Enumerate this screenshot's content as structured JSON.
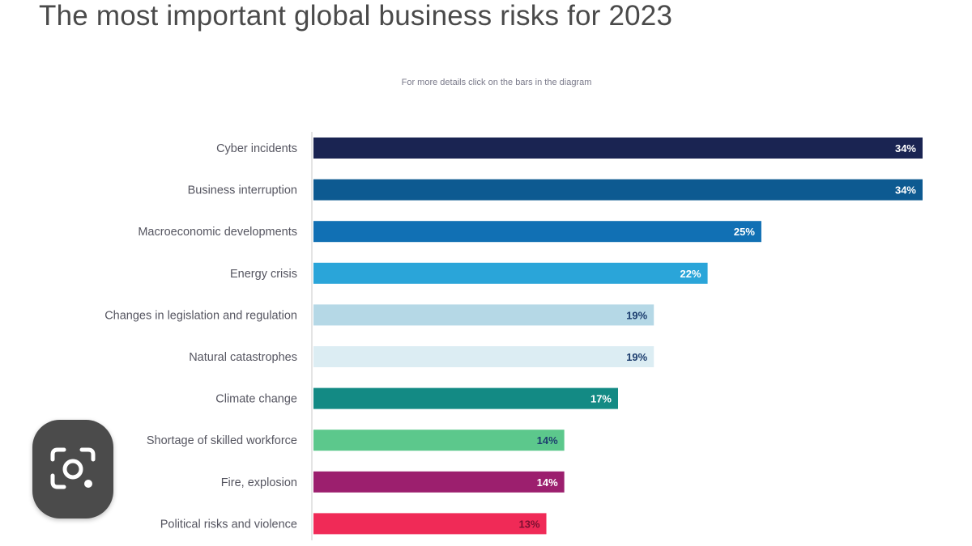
{
  "chart_data": {
    "type": "bar",
    "orientation": "horizontal",
    "title": "The most important global business risks for 2023",
    "subtitle": "For more details click on the bars in the diagram",
    "xlabel": "",
    "ylabel": "",
    "unit": "%",
    "xlim": [
      0,
      34
    ],
    "grid": false,
    "legend": "none",
    "categories": [
      "Cyber incidents",
      "Business interruption",
      "Macroeconomic developments",
      "Energy crisis",
      "Changes in legislation and regulation",
      "Natural catastrophes",
      "Climate change",
      "Shortage of skilled workforce",
      "Fire, explosion",
      "Political risks and violence"
    ],
    "values": [
      34,
      34,
      25,
      22,
      19,
      19,
      17,
      14,
      14,
      13
    ],
    "data_labels": [
      "34%",
      "34%",
      "25%",
      "22%",
      "19%",
      "19%",
      "17%",
      "14%",
      "14%",
      "13%"
    ],
    "bar_colors": [
      "#1a2452",
      "#0d5a91",
      "#1170b4",
      "#2aa5d9",
      "#b5d8e6",
      "#dcedf3",
      "#138a84",
      "#5cc88c",
      "#9c1f6e",
      "#f02a57"
    ],
    "label_colors": [
      "#ffffff",
      "#ffffff",
      "#ffffff",
      "#ffffff",
      "#1c3d6e",
      "#1c3d6e",
      "#ffffff",
      "#1c3d6e",
      "#ffffff",
      "#7a1030"
    ]
  },
  "overlay": {
    "lens_button_icon": "camera-lens-icon"
  }
}
